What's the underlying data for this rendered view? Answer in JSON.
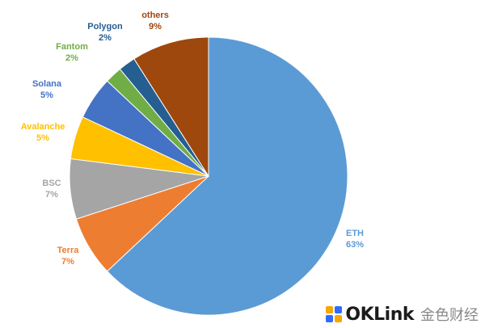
{
  "chart_data": {
    "type": "pie",
    "start_angle_deg": 0,
    "direction": "clockwise",
    "slices": [
      {
        "label": "ETH",
        "value": 63,
        "pct_label": "63%",
        "color": "#5B9BD5"
      },
      {
        "label": "Terra",
        "value": 7,
        "pct_label": "7%",
        "color": "#ED7D31"
      },
      {
        "label": "BSC",
        "value": 7,
        "pct_label": "7%",
        "color": "#A5A5A5"
      },
      {
        "label": "Avalanche",
        "value": 5,
        "pct_label": "5%",
        "color": "#FFC000"
      },
      {
        "label": "Solana",
        "value": 5,
        "pct_label": "5%",
        "color": "#4472C4"
      },
      {
        "label": "Fantom",
        "value": 2,
        "pct_label": "2%",
        "color": "#70AD47"
      },
      {
        "label": "Polygon",
        "value": 2,
        "pct_label": "2%",
        "color": "#255E91"
      },
      {
        "label": "others",
        "value": 9,
        "pct_label": "9%",
        "color": "#9E480E"
      }
    ]
  },
  "watermark": {
    "text": "OKLink",
    "cn_text": "金色财经",
    "logo_colors": [
      "#F7A600",
      "#2F6BFF",
      "#2F6BFF",
      "#F7A600"
    ]
  }
}
